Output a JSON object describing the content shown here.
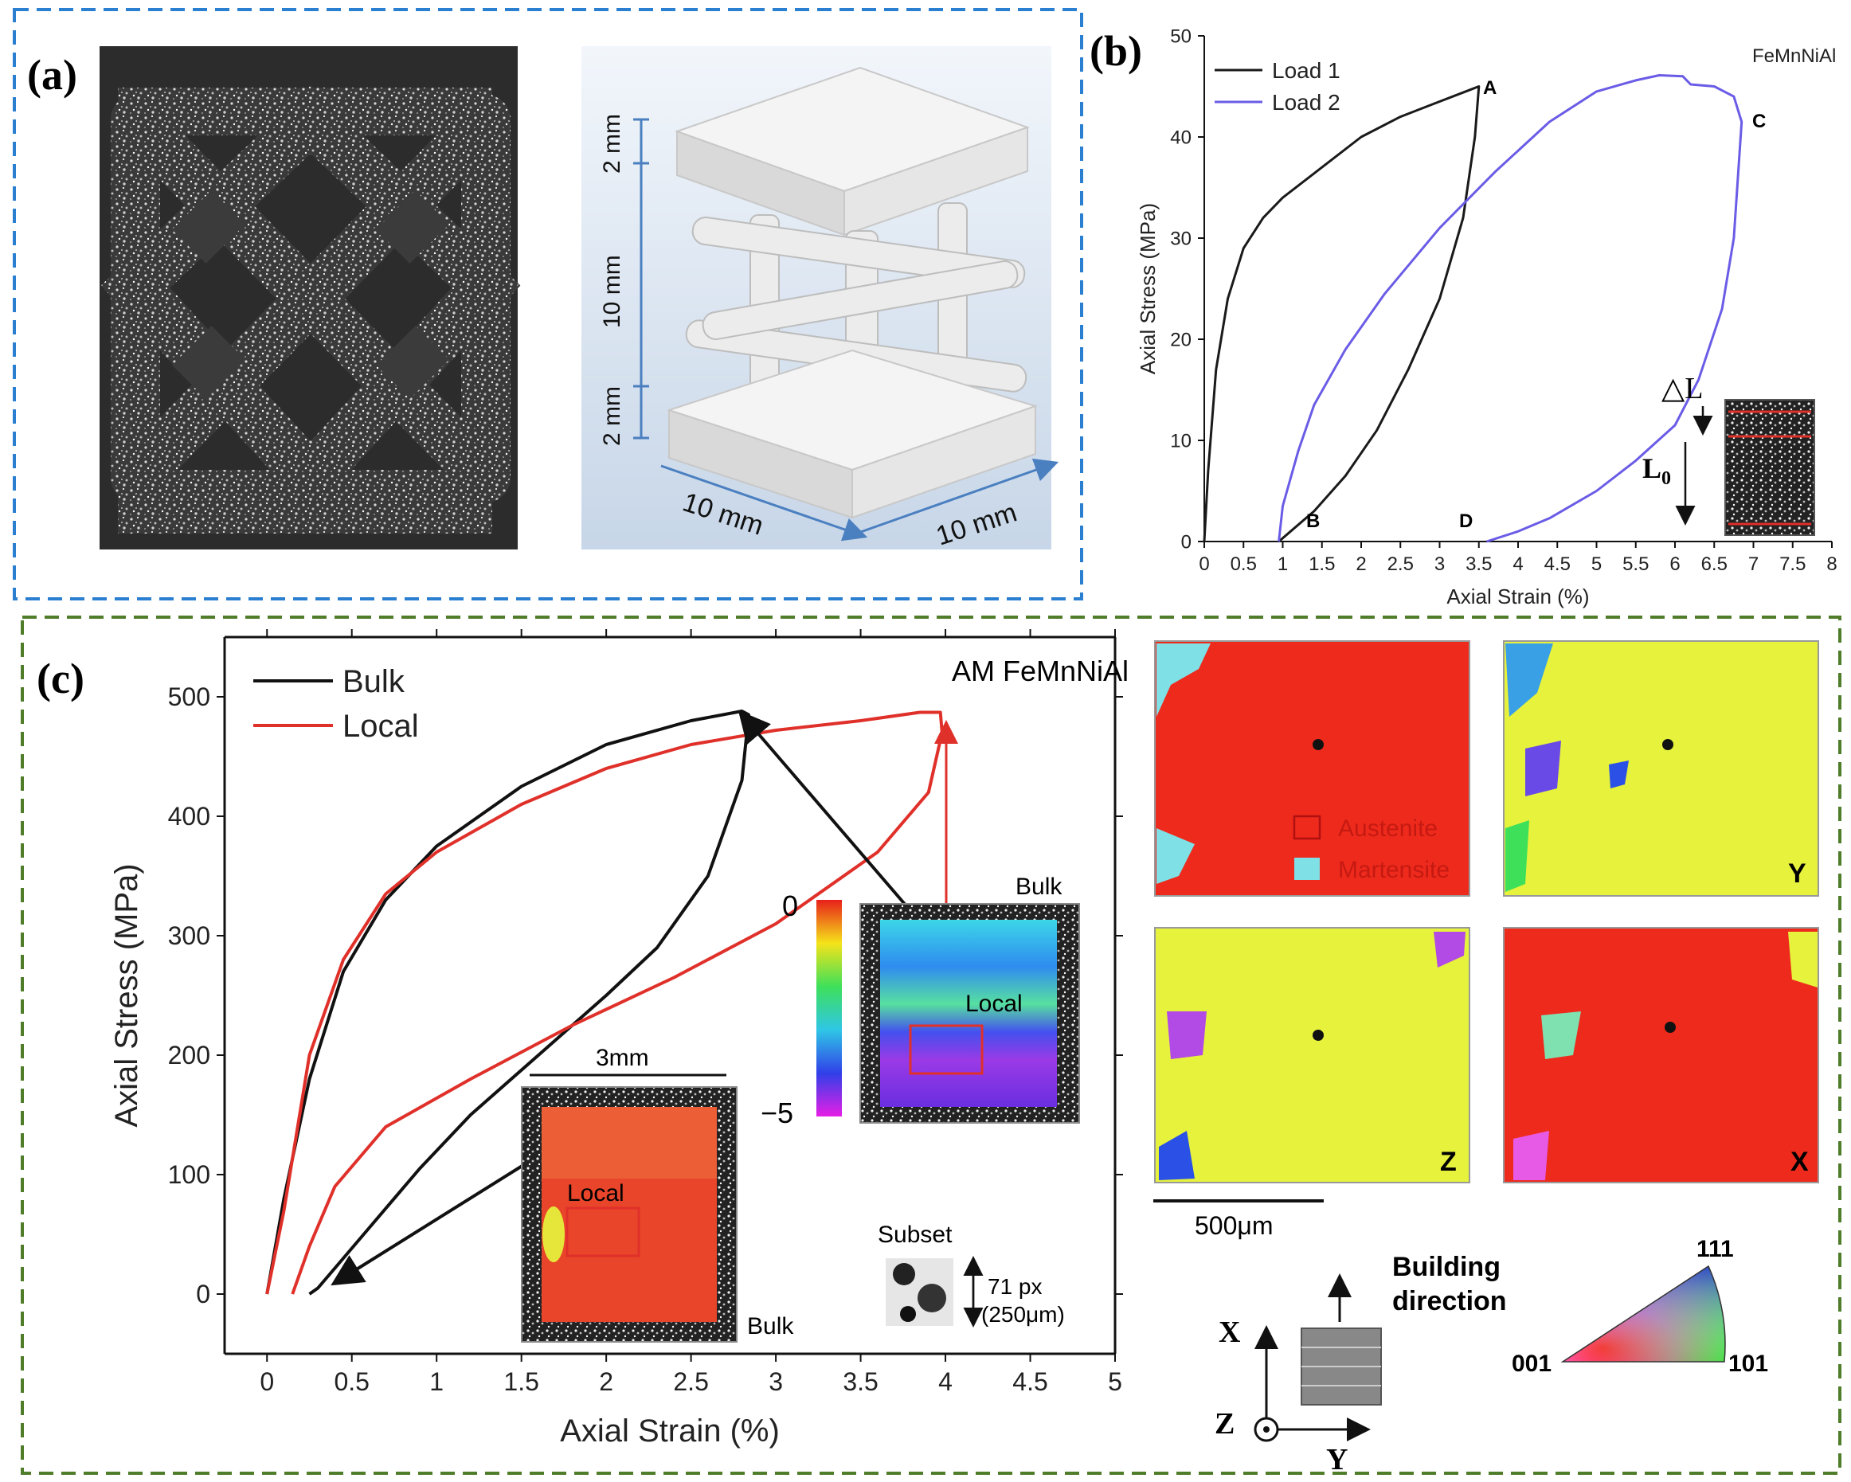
{
  "panel_a": {
    "label": "(a)",
    "dims": {
      "top": "2 mm",
      "middle": "10 mm",
      "bottom": "2 mm",
      "width": "10 mm",
      "depth": "10 mm"
    }
  },
  "panel_b": {
    "label": "(b)",
    "alloy": "FeMnNiAl",
    "points": {
      "A": "A",
      "B": "B",
      "C": "C",
      "D": "D"
    },
    "inset": {
      "delta_l": "△L",
      "l0": "L",
      "l0_sub": "0"
    }
  },
  "panel_c": {
    "label": "(c)",
    "title": "AM FeMnNiAl",
    "scale_3mm": "3mm",
    "local_label": "Local",
    "bulk_label": "Bulk",
    "colorbar_top": "0",
    "colorbar_bottom": "−5",
    "subset_label": "Subset",
    "subset_px": "71 px",
    "subset_um": "(250μm)"
  },
  "ebsd": {
    "austenite": "Austenite",
    "martensite": "Martensite",
    "map_letters": [
      "Y",
      "Z",
      "X"
    ],
    "scale_bar": "500μm",
    "building_direction_1": "Building",
    "building_direction_2": "direction",
    "axes": {
      "x": "X",
      "y": "Y",
      "z": "Z"
    },
    "ipf": {
      "top": "111",
      "left": "001",
      "right": "101"
    }
  },
  "colors": {
    "panel_a_border": "#2a7fd0",
    "panel_c_border": "#4f7d2a",
    "load1": "#1a1a1a",
    "load2": "#6a5ce6",
    "bulk": "#111111",
    "local": "#e0302a",
    "austenite": "#ee2a1c",
    "martensite": "#7fe0e6",
    "ipf_yellow": "#e6f23c"
  },
  "chart_data": [
    {
      "type": "line",
      "title": "",
      "xlabel": "Axial Strain (%)",
      "ylabel": "Axial Stress (MPa)",
      "xlim": [
        0,
        8
      ],
      "ylim": [
        0,
        50
      ],
      "xticks": [
        "0",
        "0.5",
        "1",
        "1.5",
        "2",
        "2.5",
        "3",
        "3.5",
        "4",
        "4.5",
        "5",
        "5.5",
        "6",
        "6.5",
        "7",
        "7.5",
        "8"
      ],
      "yticks": [
        "0",
        "10",
        "20",
        "30",
        "40",
        "50"
      ],
      "legend_position": "top-left",
      "series": [
        {
          "name": "Load 1",
          "x": [
            0,
            0.05,
            0.15,
            0.3,
            0.5,
            0.75,
            1.0,
            1.5,
            2.0,
            2.5,
            3.0,
            3.4,
            3.5,
            3.45,
            3.3,
            3.0,
            2.6,
            2.2,
            1.8,
            1.4,
            1.1,
            0.95
          ],
          "y": [
            0,
            7,
            17,
            24,
            29,
            32,
            34,
            37,
            40,
            42,
            43.5,
            44.7,
            45,
            40,
            32,
            24,
            17,
            11,
            6.5,
            3,
            1,
            0
          ]
        },
        {
          "name": "Load 2",
          "x": [
            0.95,
            1.0,
            1.2,
            1.4,
            1.8,
            2.3,
            3.0,
            3.7,
            4.4,
            5.0,
            5.5,
            5.8,
            6.1,
            6.2,
            6.5,
            6.75,
            6.85,
            6.75,
            6.6,
            6.3,
            6.0,
            5.5,
            5.0,
            4.4,
            4.0,
            3.6
          ],
          "y": [
            0,
            3.5,
            9,
            13.5,
            19,
            24.5,
            31,
            36.5,
            41.5,
            44.5,
            45.6,
            46.1,
            46,
            45.2,
            45,
            44,
            41.5,
            30,
            23,
            16,
            11.5,
            8,
            5,
            2.3,
            1,
            0
          ]
        }
      ]
    },
    {
      "type": "line",
      "title": "AM FeMnNiAl",
      "xlabel": "Axial Strain (%)",
      "ylabel": "Axial Stress (MPa)",
      "xlim": [
        -0.25,
        5
      ],
      "ylim": [
        -50,
        550
      ],
      "xticks": [
        "0",
        "0.5",
        "1",
        "1.5",
        "2",
        "2.5",
        "3",
        "3.5",
        "4",
        "4.5",
        "5"
      ],
      "yticks": [
        "0",
        "100",
        "200",
        "300",
        "400",
        "500"
      ],
      "legend_position": "top-left",
      "series": [
        {
          "name": "Bulk",
          "x": [
            0,
            0.1,
            0.25,
            0.45,
            0.7,
            1.0,
            1.5,
            2.0,
            2.5,
            2.8,
            2.84,
            2.8,
            2.6,
            2.3,
            2.0,
            1.6,
            1.2,
            0.9,
            0.6,
            0.45,
            0.3,
            0.25
          ],
          "y": [
            0,
            80,
            180,
            270,
            330,
            375,
            425,
            460,
            480,
            488,
            485,
            430,
            350,
            290,
            250,
            200,
            150,
            105,
            55,
            30,
            5,
            0
          ]
        },
        {
          "name": "Local",
          "x": [
            0,
            0.1,
            0.25,
            0.45,
            0.7,
            1.0,
            1.5,
            2.0,
            2.5,
            3.0,
            3.5,
            3.85,
            3.97,
            3.98,
            3.9,
            3.6,
            3.0,
            2.4,
            1.8,
            1.2,
            0.7,
            0.4,
            0.25,
            0.15
          ],
          "y": [
            0,
            70,
            200,
            280,
            335,
            370,
            410,
            440,
            460,
            472,
            480,
            487,
            487,
            470,
            420,
            370,
            310,
            265,
            225,
            180,
            140,
            90,
            40,
            0
          ]
        }
      ]
    }
  ]
}
